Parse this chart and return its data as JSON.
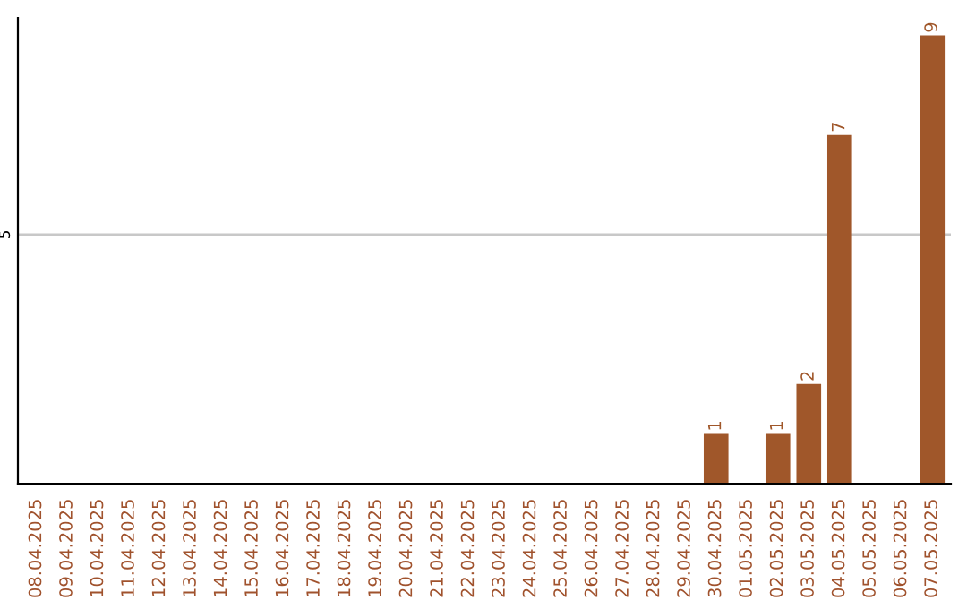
{
  "chart_data": {
    "type": "bar",
    "categories": [
      "08.04.2025",
      "09.04.2025",
      "10.04.2025",
      "11.04.2025",
      "12.04.2025",
      "13.04.2025",
      "14.04.2025",
      "15.04.2025",
      "16.04.2025",
      "17.04.2025",
      "18.04.2025",
      "19.04.2025",
      "20.04.2025",
      "21.04.2025",
      "22.04.2025",
      "23.04.2025",
      "24.04.2025",
      "25.04.2025",
      "26.04.2025",
      "27.04.2025",
      "28.04.2025",
      "29.04.2025",
      "30.04.2025",
      "01.05.2025",
      "02.05.2025",
      "03.05.2025",
      "04.05.2025",
      "05.05.2025",
      "06.05.2025",
      "07.05.2025"
    ],
    "values": [
      null,
      null,
      null,
      null,
      null,
      null,
      null,
      null,
      null,
      null,
      null,
      null,
      null,
      null,
      null,
      null,
      null,
      null,
      null,
      null,
      null,
      null,
      1,
      null,
      1,
      2,
      7,
      null,
      null,
      9
    ],
    "color": "#a0572a",
    "ylim": [
      0,
      9.35
    ],
    "yticks": [
      5
    ],
    "grid": "y",
    "data_labels": true,
    "legend": false
  }
}
